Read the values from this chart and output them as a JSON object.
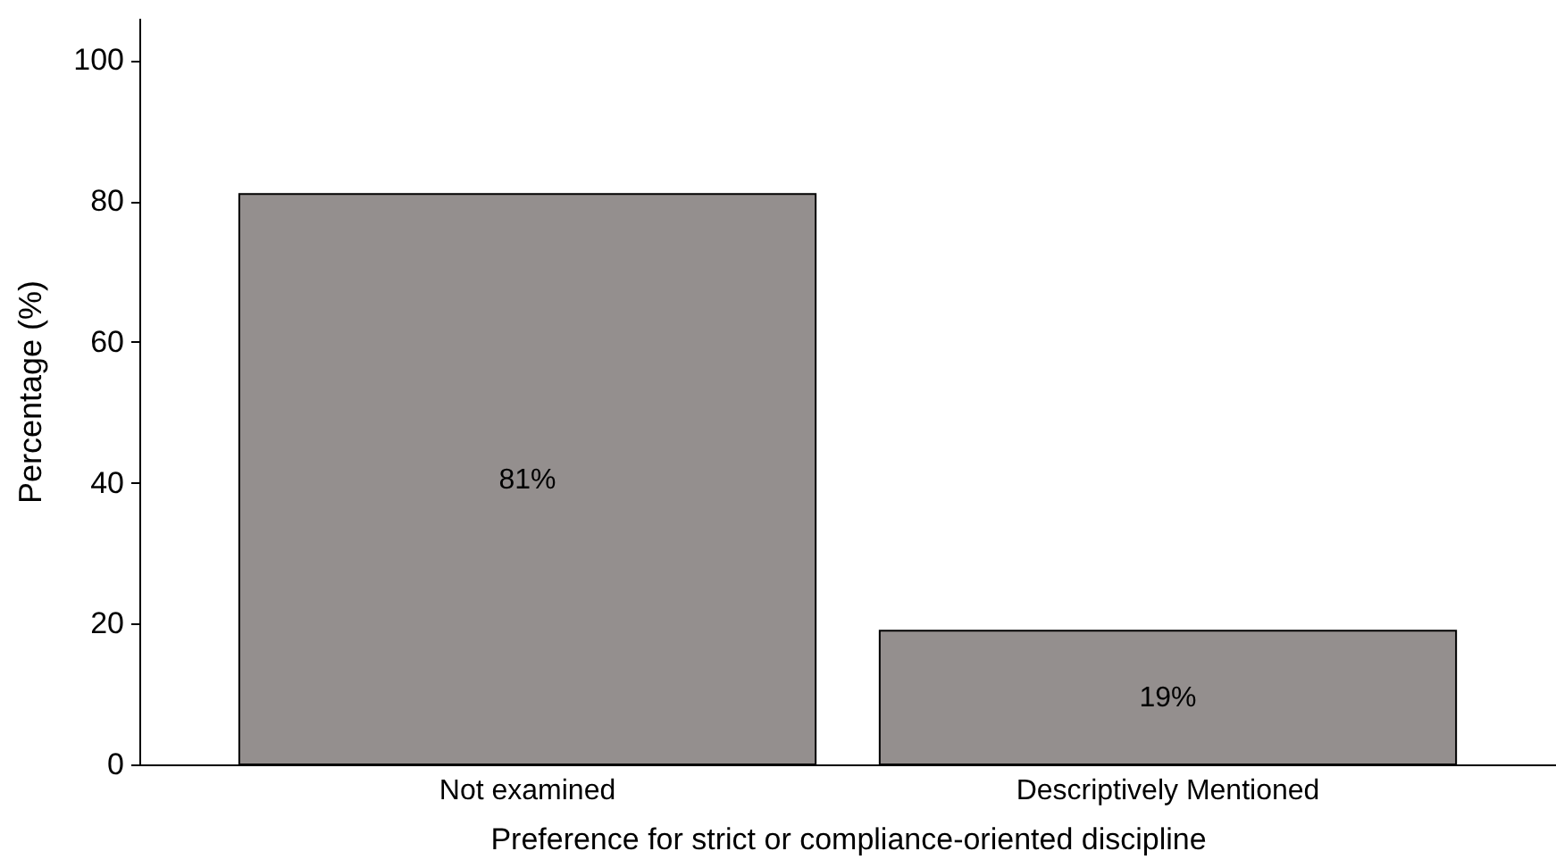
{
  "chart_data": {
    "type": "bar",
    "xlabel": "Preference for strict or compliance-oriented discipline",
    "ylabel": "Percentage (%)",
    "categories": [
      "Not examined",
      "Descriptively Mentioned"
    ],
    "values": [
      81,
      19
    ],
    "value_labels": [
      "81%",
      "19%"
    ],
    "color": "#948f8e",
    "ylim": [
      0,
      106
    ],
    "yticks": [
      0,
      20,
      40,
      60,
      80,
      100
    ],
    "grid": false
  }
}
